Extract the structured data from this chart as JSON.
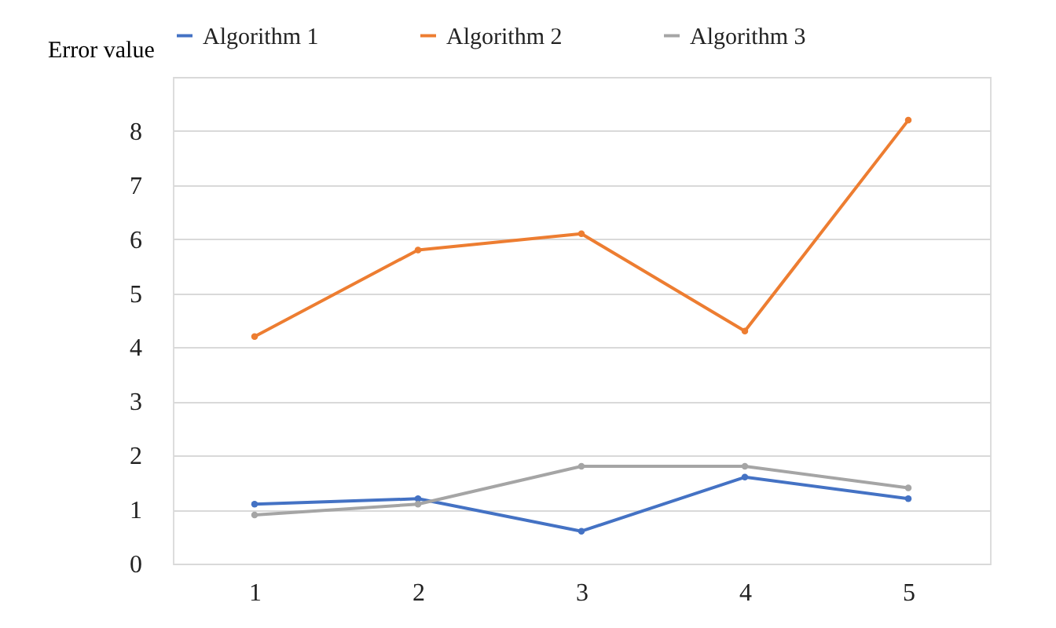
{
  "chart_data": {
    "type": "line",
    "ylabel": "Error value",
    "categories": [
      "1",
      "2",
      "3",
      "4",
      "5"
    ],
    "series": [
      {
        "name": "Algorithm 1",
        "color": "#4472c4",
        "values": [
          1.1,
          1.2,
          0.6,
          1.6,
          1.2
        ]
      },
      {
        "name": "Algorithm 2",
        "color": "#ed7d31",
        "values": [
          4.2,
          5.8,
          6.1,
          4.3,
          8.2
        ]
      },
      {
        "name": "Algorithm 3",
        "color": "#a5a5a5",
        "values": [
          0.9,
          1.1,
          1.8,
          1.8,
          1.4
        ]
      }
    ],
    "ylim": [
      0,
      9
    ],
    "yticks": [
      0,
      1,
      2,
      3,
      4,
      5,
      6,
      7,
      8,
      {
        "value": 9,
        "label": null
      }
    ],
    "grid": "y",
    "legend": "top",
    "marker": "circle",
    "line_style": "solid"
  }
}
